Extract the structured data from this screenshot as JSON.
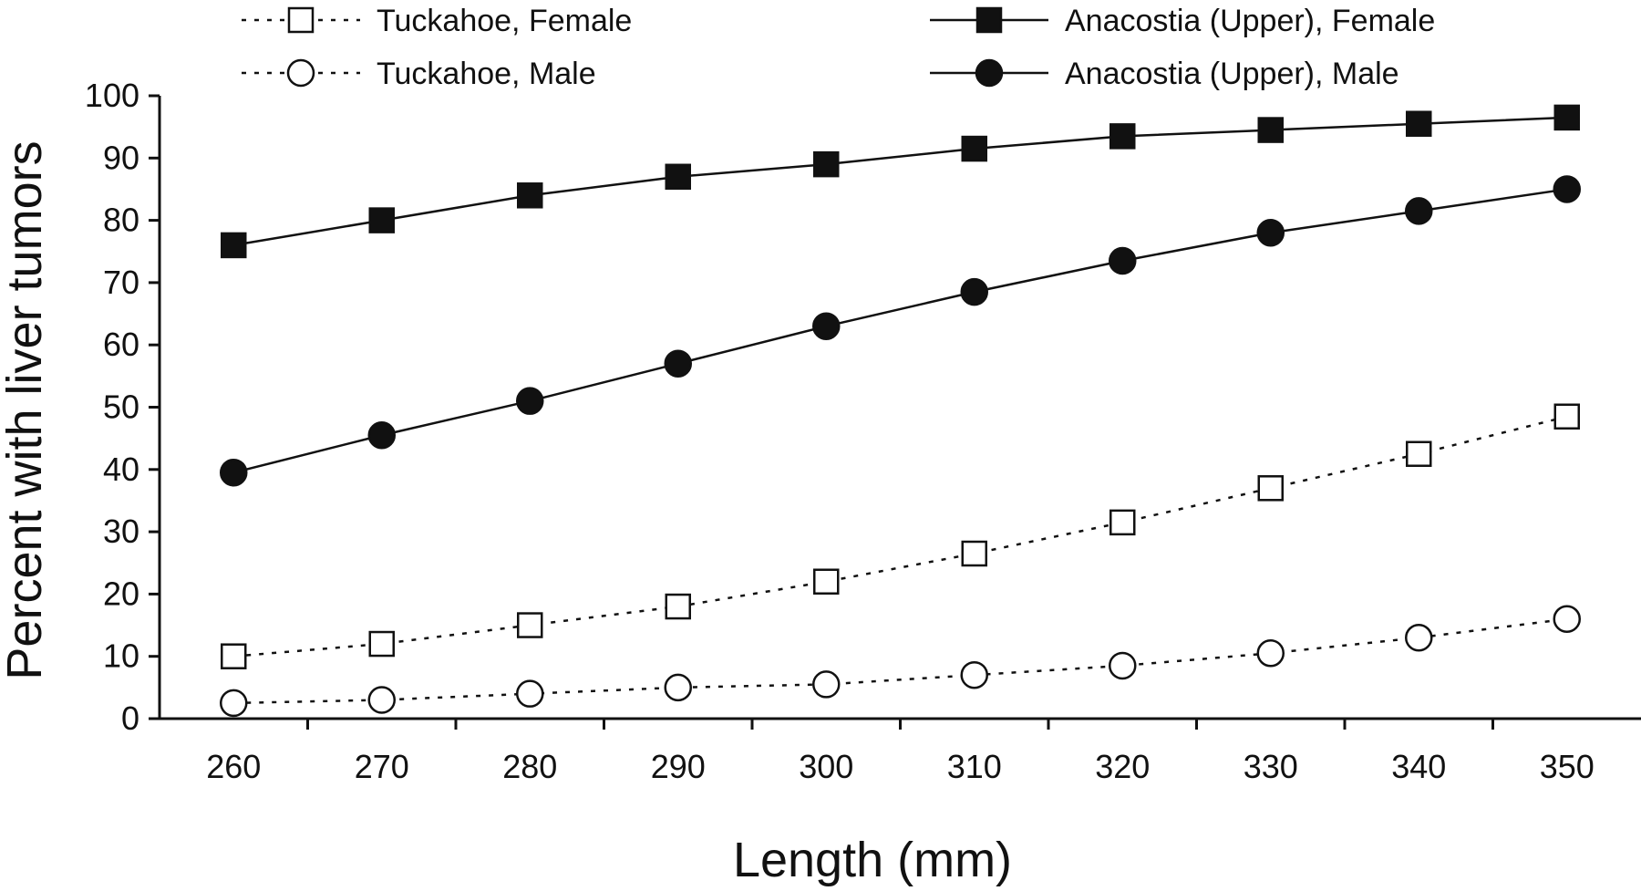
{
  "chart_data": {
    "type": "line",
    "title": "",
    "xlabel": "Length (mm)",
    "ylabel": "Percent with liver tumors",
    "x": [
      260,
      270,
      280,
      290,
      300,
      310,
      320,
      330,
      340,
      350
    ],
    "xlim": [
      255,
      355
    ],
    "ylim": [
      0,
      100
    ],
    "x_ticks": [
      "260",
      "270",
      "280",
      "290",
      "300",
      "310",
      "320",
      "330",
      "340",
      "350"
    ],
    "y_ticks": [
      "0",
      "10",
      "20",
      "30",
      "40",
      "50",
      "60",
      "70",
      "80",
      "90",
      "100"
    ],
    "grid": false,
    "legend_position": "top",
    "series": [
      {
        "name": "Tuckahoe, Female",
        "marker": "square-open",
        "line_style": "dotted",
        "values": [
          10,
          12,
          15,
          18,
          22,
          26.5,
          31.5,
          37,
          42.5,
          48.5
        ]
      },
      {
        "name": "Tuckahoe, Male",
        "marker": "circle-open",
        "line_style": "dotted",
        "values": [
          2.5,
          3,
          4,
          5,
          5.5,
          7,
          8.5,
          10.5,
          13,
          16
        ]
      },
      {
        "name": "Anacostia (Upper), Female",
        "marker": "square-filled",
        "line_style": "solid",
        "values": [
          76,
          80,
          84,
          87,
          89,
          91.5,
          93.5,
          94.5,
          95.5,
          96.5
        ]
      },
      {
        "name": "Anacostia (Upper), Male",
        "marker": "circle-filled",
        "line_style": "solid",
        "values": [
          39.5,
          45.5,
          51,
          57,
          63,
          68.5,
          73.5,
          78,
          81.5,
          85
        ]
      }
    ],
    "colors": {
      "line": "#111111",
      "marker_fill_open": "#ffffff",
      "marker_fill_filled": "#111111",
      "axis": "#111111"
    }
  }
}
